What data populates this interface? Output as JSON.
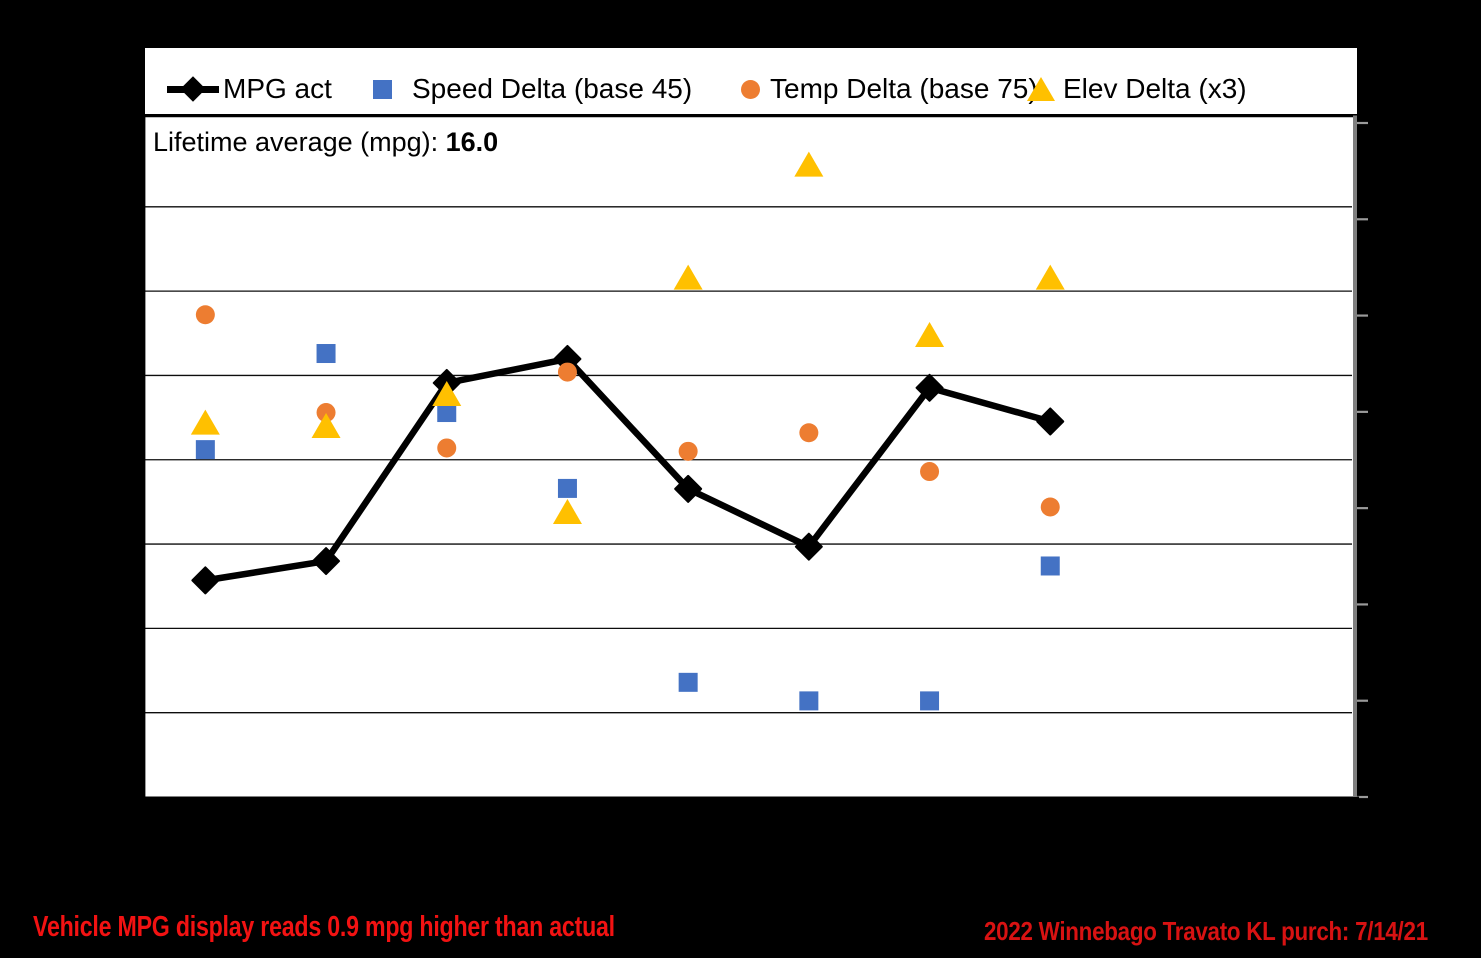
{
  "legend": {
    "items": [
      {
        "label": "MPG act",
        "marker": "line-diamond",
        "color": "#000000"
      },
      {
        "label": "Speed Delta (base 45)",
        "marker": "square",
        "color": "#4472C4"
      },
      {
        "label": "Temp Delta (base 75)",
        "marker": "circle",
        "color": "#ED7D31"
      },
      {
        "label": "Elev Delta (x3)",
        "marker": "triangle",
        "color": "#FFC000"
      }
    ]
  },
  "annotations": {
    "lifetime_label": "Lifetime average (mpg): ",
    "lifetime_value": "16.0",
    "note_left": "Vehicle MPG display reads 0.9 mpg higher than actual",
    "note_left_color": "#F21212",
    "note_right": "2022 Winnebago Travato KL purch: 7/14/21",
    "note_right_color": "#D81212"
  },
  "chart_data": {
    "type": "line",
    "title": "",
    "x": [
      1,
      2,
      3,
      4,
      5,
      6,
      7,
      8
    ],
    "x_slots": 10,
    "series": [
      {
        "name": "MPG act",
        "plot": "line",
        "axis": "right",
        "marker": "diamond",
        "color": "#000000",
        "values": [
          14.5,
          14.9,
          18.6,
          19.1,
          16.4,
          15.2,
          18.5,
          17.8
        ]
      },
      {
        "name": "Speed Delta (base 45)",
        "plot": "scatter",
        "axis": "left",
        "marker": "square",
        "color": "#4472C4",
        "values": [
          0.6,
          6.3,
          2.8,
          -1.7,
          -13.2,
          -14.3,
          -14.3,
          -6.3
        ]
      },
      {
        "name": "Temp Delta (base 75)",
        "plot": "scatter",
        "axis": "left",
        "marker": "circle",
        "color": "#ED7D31",
        "values": [
          8.6,
          2.8,
          0.7,
          5.2,
          0.5,
          1.6,
          -0.7,
          -2.8
        ]
      },
      {
        "name": "Elev Delta (x3)",
        "plot": "scatter",
        "axis": "left",
        "marker": "triangle",
        "color": "#FFC000",
        "values": [
          2.2,
          2.0,
          3.9,
          -3.1,
          10.8,
          17.5,
          7.4,
          10.8
        ]
      }
    ],
    "axes": {
      "left": {
        "min": -20,
        "max": 20,
        "step": 5,
        "labels_visible": false
      },
      "right": {
        "min": 10,
        "max": 24,
        "step": 2,
        "labels_visible": false
      },
      "x": {
        "labels_visible": false
      }
    },
    "grid": "horizontal",
    "legend_position": "top",
    "plot_background": "#FFFFFF",
    "page_background": "#000000"
  }
}
